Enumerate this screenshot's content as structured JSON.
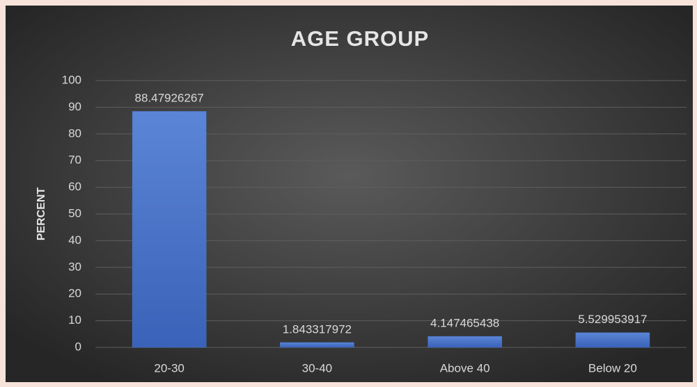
{
  "chart_data": {
    "type": "bar",
    "title": "AGE GROUP",
    "y_label": "PERCENT",
    "categories": [
      "20-30",
      "30-40",
      "Above 40",
      "Below 20"
    ],
    "values": [
      88.47926267,
      1.843317972,
      4.147465438,
      5.529953917
    ],
    "color": "#4472c4",
    "ylim": [
      0,
      100
    ],
    "yticks": [
      0,
      10,
      20,
      30,
      40,
      50,
      60,
      70,
      80,
      90,
      100
    ],
    "grid": true
  }
}
